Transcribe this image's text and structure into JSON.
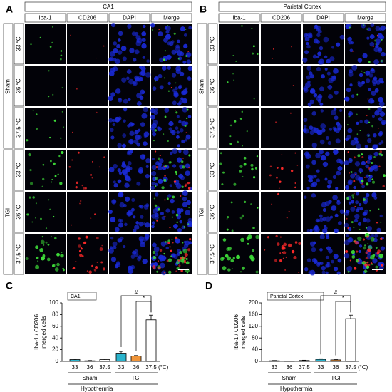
{
  "panels": [
    {
      "letter": "A",
      "region": "CA1",
      "columns": [
        {
          "label": "Iba-1",
          "color": "#2fd62f"
        },
        {
          "label": "CD206",
          "color": "#ff3030"
        },
        {
          "label": "DAPI",
          "color": "#3030ff"
        },
        {
          "label": "Merge",
          "color": "#000000"
        }
      ],
      "groups": [
        {
          "name": "Sham",
          "temps": [
            "33 °C",
            "36 °C",
            "37.5 °C"
          ]
        },
        {
          "name": "TGI",
          "temps": [
            "33 °C",
            "36 °C",
            "37.5 °C"
          ]
        }
      ]
    },
    {
      "letter": "B",
      "region": "Parietal Cortex",
      "columns": [
        {
          "label": "Iba-1",
          "color": "#2fd62f"
        },
        {
          "label": "CD206",
          "color": "#ff3030"
        },
        {
          "label": "DAPI",
          "color": "#3030ff"
        },
        {
          "label": "Merge",
          "color": "#000000"
        }
      ],
      "groups": [
        {
          "name": "Sham",
          "temps": [
            "33 °C",
            "36 °C",
            "37.5 °C"
          ]
        },
        {
          "name": "TGI",
          "temps": [
            "33 °C",
            "36 °C",
            "37.5 °C"
          ]
        }
      ]
    }
  ],
  "chart_data": [
    {
      "type": "bar",
      "letter": "C",
      "title": "CA1",
      "y_label": [
        "Iba-1 / CD206",
        "merged cells"
      ],
      "categories": [
        "33",
        "36",
        "37.5",
        "33",
        "36",
        "37.5"
      ],
      "unit": "(°C)",
      "groups": [
        "Sham",
        "TGI"
      ],
      "x_label": "Hypothermia",
      "values": [
        3,
        1,
        3,
        14,
        9,
        71
      ],
      "errors": [
        1,
        0.5,
        1,
        3,
        1,
        8
      ],
      "colors": [
        "#2ab3cc",
        "#f0953a",
        "#ffffff",
        "#2ab3cc",
        "#f0953a",
        "#ffffff"
      ],
      "ylim": [
        0,
        100
      ],
      "yticks": [
        0,
        20,
        40,
        60,
        80,
        100
      ],
      "annotations": [
        "#",
        "*"
      ]
    },
    {
      "type": "bar",
      "letter": "D",
      "title": "Parietal Cortex",
      "y_label": [
        "Iba-1 / CD206",
        "merged cells"
      ],
      "categories": [
        "33",
        "36",
        "37.5",
        "33",
        "36",
        "37.5"
      ],
      "unit": "(°C)",
      "groups": [
        "Sham",
        "TGI"
      ],
      "x_label": "Hypothermia",
      "values": [
        2,
        1,
        3,
        7,
        5,
        146
      ],
      "errors": [
        1,
        0.5,
        1,
        2,
        1,
        12
      ],
      "colors": [
        "#2ab3cc",
        "#f0953a",
        "#ffffff",
        "#2ab3cc",
        "#f0953a",
        "#ffffff"
      ],
      "ylim": [
        0,
        200
      ],
      "yticks": [
        0,
        40,
        80,
        120,
        160,
        200
      ],
      "annotations": [
        "#",
        "*"
      ]
    }
  ]
}
